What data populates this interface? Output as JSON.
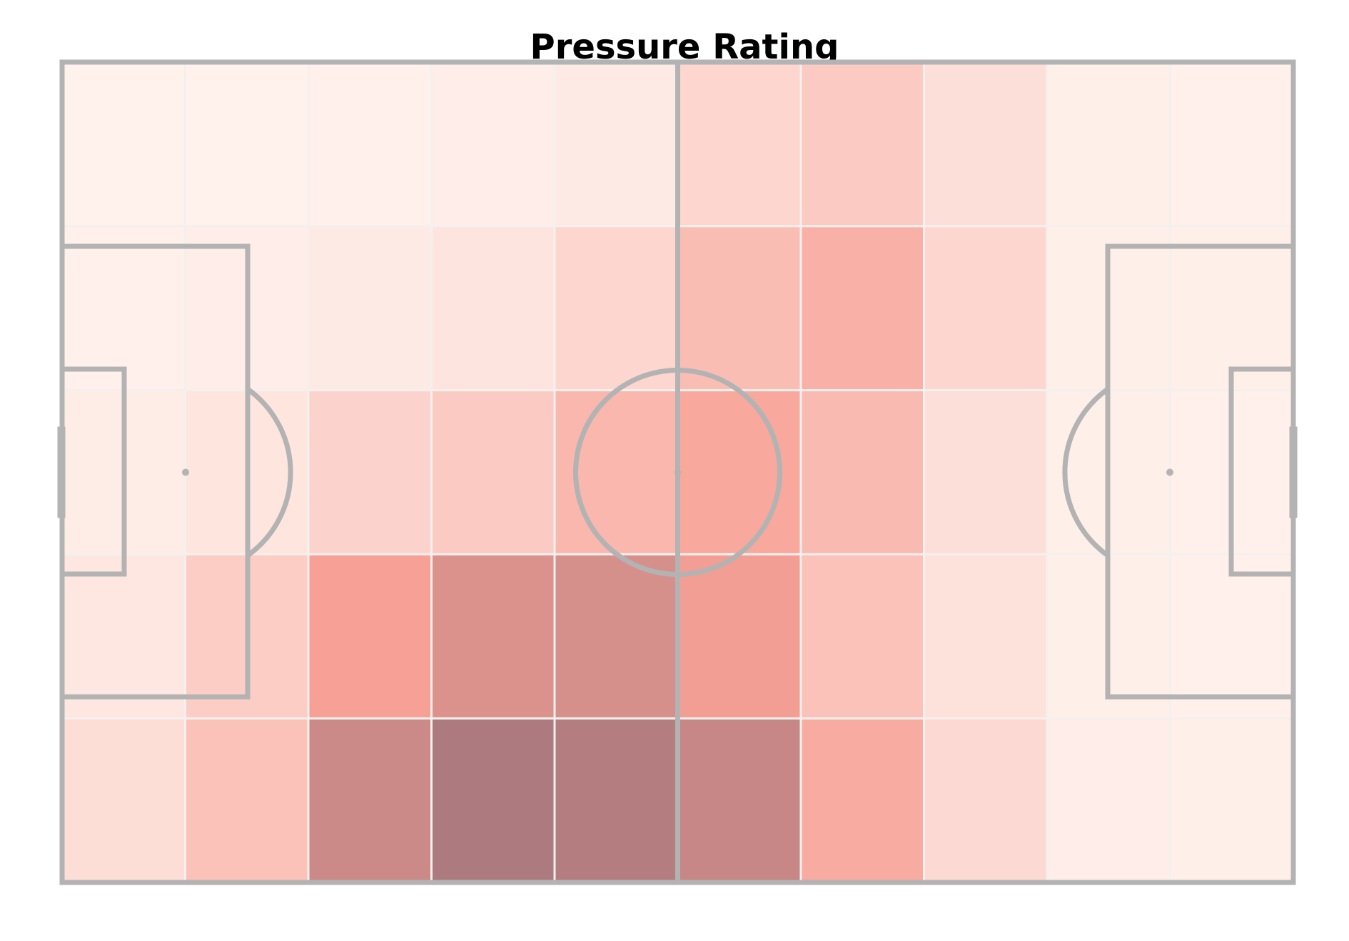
{
  "chart_data": {
    "type": "heatmap",
    "title": "Pressure Rating",
    "xlabel": "",
    "ylabel": "",
    "grid": false,
    "legend": "none",
    "colormap": "reds",
    "max_value": 1.0,
    "rows": 5,
    "cols": 10,
    "values": [
      [
        0.02,
        0.02,
        0.03,
        0.05,
        0.07,
        0.2,
        0.27,
        0.14,
        0.04,
        0.03
      ],
      [
        0.03,
        0.05,
        0.07,
        0.11,
        0.2,
        0.36,
        0.44,
        0.2,
        0.04,
        0.04
      ],
      [
        0.06,
        0.1,
        0.22,
        0.28,
        0.4,
        0.5,
        0.38,
        0.14,
        0.04,
        0.03
      ],
      [
        0.09,
        0.26,
        0.55,
        0.72,
        0.75,
        0.58,
        0.33,
        0.12,
        0.04,
        0.03
      ],
      [
        0.15,
        0.33,
        0.82,
        1.0,
        0.96,
        0.85,
        0.48,
        0.18,
        0.05,
        0.04
      ]
    ]
  },
  "colors": {
    "pitch_line": "#b3b3b3",
    "heat_low": "#fff5f0",
    "heat_mid": "#f7a095",
    "heat_high": "#ad7b7f"
  }
}
